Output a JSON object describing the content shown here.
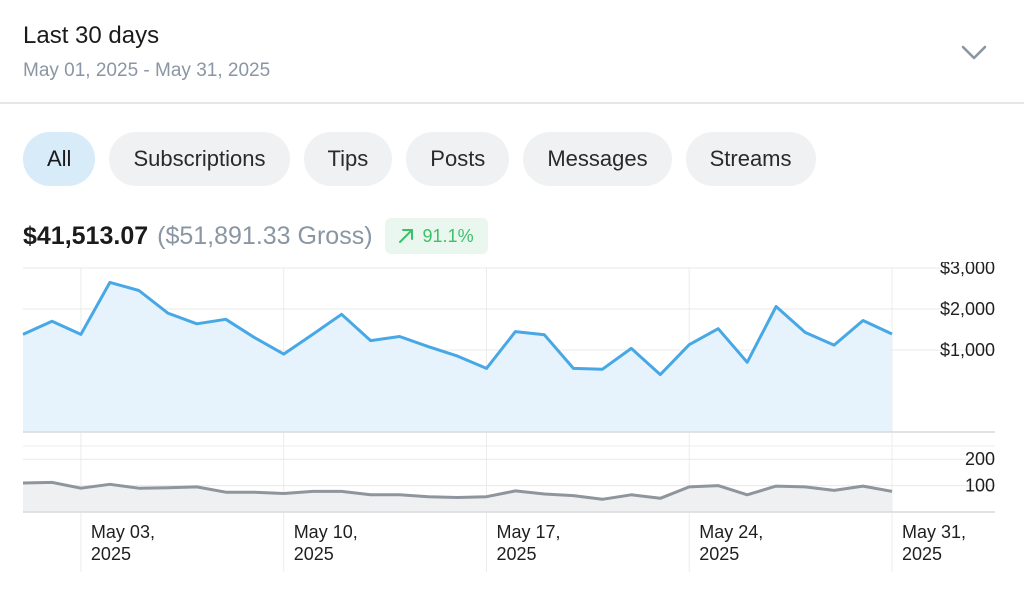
{
  "header": {
    "title": "Last 30 days",
    "date_range": "May 01, 2025 - May 31, 2025",
    "toggle_icon": "chevron-down-icon"
  },
  "tabs": [
    {
      "label": "All",
      "active": true
    },
    {
      "label": "Subscriptions",
      "active": false
    },
    {
      "label": "Tips",
      "active": false
    },
    {
      "label": "Posts",
      "active": false
    },
    {
      "label": "Messages",
      "active": false
    },
    {
      "label": "Streams",
      "active": false
    }
  ],
  "summary": {
    "net": "$41,513.07",
    "gross": "($51,891.33 Gross)",
    "change": "91.1%",
    "change_icon": "arrow-up-right-icon",
    "change_color": "#3fbf6c"
  },
  "chart_data": [
    {
      "type": "area",
      "name": "earnings",
      "x": [
        "2025-05-01",
        "2025-05-02",
        "2025-05-03",
        "2025-05-04",
        "2025-05-05",
        "2025-05-06",
        "2025-05-07",
        "2025-05-08",
        "2025-05-09",
        "2025-05-10",
        "2025-05-11",
        "2025-05-12",
        "2025-05-13",
        "2025-05-14",
        "2025-05-15",
        "2025-05-16",
        "2025-05-17",
        "2025-05-18",
        "2025-05-19",
        "2025-05-20",
        "2025-05-21",
        "2025-05-22",
        "2025-05-23",
        "2025-05-24",
        "2025-05-25",
        "2025-05-26",
        "2025-05-27",
        "2025-05-28",
        "2025-05-29",
        "2025-05-30",
        "2025-05-31"
      ],
      "values": [
        1380,
        1700,
        1380,
        2650,
        2450,
        1900,
        1640,
        1750,
        1300,
        900,
        1380,
        1870,
        1230,
        1330,
        1080,
        850,
        550,
        1450,
        1370,
        550,
        530,
        1040,
        400,
        1130,
        1520,
        700,
        2060,
        1430,
        1120,
        1720,
        1390
      ],
      "color": "#47a8e5",
      "fill": "#e6f3fc",
      "y_ticks": [
        1000,
        2000,
        3000
      ],
      "y_tick_labels": [
        "$1,000",
        "$2,000",
        "$3,000"
      ],
      "ylim": [
        -1000,
        3000
      ],
      "grid": true
    },
    {
      "type": "area",
      "name": "count",
      "x": [
        "2025-05-01",
        "2025-05-02",
        "2025-05-03",
        "2025-05-04",
        "2025-05-05",
        "2025-05-06",
        "2025-05-07",
        "2025-05-08",
        "2025-05-09",
        "2025-05-10",
        "2025-05-11",
        "2025-05-12",
        "2025-05-13",
        "2025-05-14",
        "2025-05-15",
        "2025-05-16",
        "2025-05-17",
        "2025-05-18",
        "2025-05-19",
        "2025-05-20",
        "2025-05-21",
        "2025-05-22",
        "2025-05-23",
        "2025-05-24",
        "2025-05-25",
        "2025-05-26",
        "2025-05-27",
        "2025-05-28",
        "2025-05-29",
        "2025-05-30",
        "2025-05-31"
      ],
      "values": [
        110,
        112,
        90,
        105,
        90,
        92,
        95,
        75,
        75,
        70,
        78,
        78,
        65,
        65,
        58,
        55,
        58,
        80,
        68,
        62,
        48,
        65,
        52,
        95,
        100,
        65,
        98,
        95,
        82,
        98,
        78
      ],
      "color": "#8f959c",
      "fill": "#eef0f2",
      "y_ticks": [
        100,
        200
      ],
      "y_tick_labels": [
        "100",
        "200"
      ],
      "ylim": [
        0,
        250
      ],
      "grid": true
    }
  ],
  "x_ticks": [
    {
      "date": "2025-05-03",
      "label_line1": "May 03,",
      "label_line2": "2025"
    },
    {
      "date": "2025-05-10",
      "label_line1": "May 10,",
      "label_line2": "2025"
    },
    {
      "date": "2025-05-17",
      "label_line1": "May 17,",
      "label_line2": "2025"
    },
    {
      "date": "2025-05-24",
      "label_line1": "May 24,",
      "label_line2": "2025"
    },
    {
      "date": "2025-05-31",
      "label_line1": "May 31,",
      "label_line2": "2025"
    }
  ]
}
